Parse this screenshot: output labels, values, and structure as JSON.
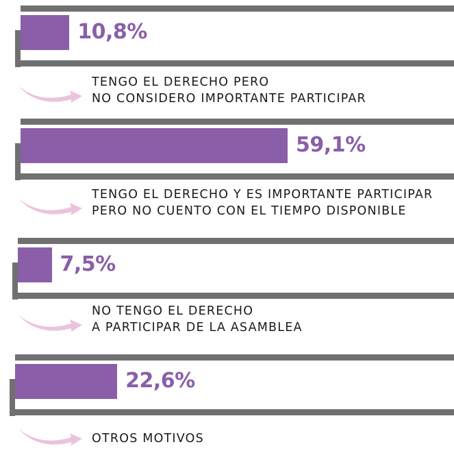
{
  "chart_data": {
    "type": "bar",
    "categories": [
      "TENGO EL DERECHO PERO\nNO CONSIDERO IMPORTANTE PARTICIPAR",
      "TENGO EL DERECHO Y ES IMPORTANTE PARTICIPAR\nPERO NO CUENTO CON EL TIEMPO DISPONIBLE",
      "NO TENGO EL DERECHO\nA PARTICIPAR DE LA ASAMBLEA",
      "OTROS MOTIVOS"
    ],
    "values": [
      10.8,
      59.1,
      7.5,
      22.6
    ],
    "value_labels": [
      "10,8%",
      "59,1%",
      "7,5%",
      "22,6%"
    ],
    "color": "#8a5ea8"
  }
}
